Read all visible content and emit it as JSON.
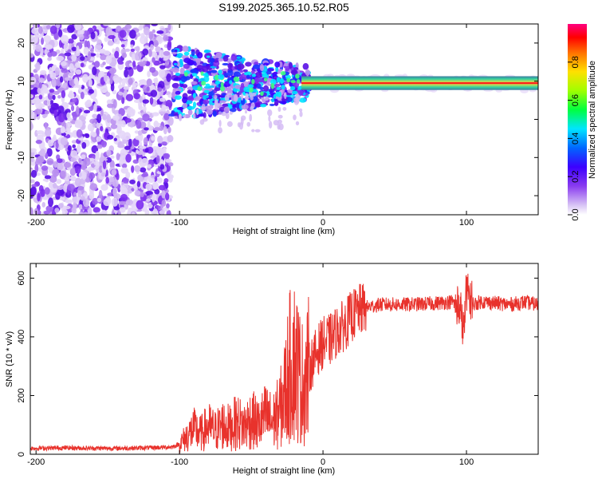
{
  "title": "S199.2025.365.10.52.R05",
  "colors": {
    "snr_line": "#e8322c",
    "spec_low": "#8a3cf0",
    "spec_high": "#ff0000",
    "band": "#3e8e7e"
  },
  "chart_data": [
    {
      "type": "heatmap",
      "name": "spectrogram",
      "xlabel": "Height of straight line (km)",
      "ylabel": "Frequency (Hz)",
      "xlim": [
        -204,
        150
      ],
      "ylim": [
        -25,
        25
      ],
      "x_ticks": [
        -200,
        -100,
        0,
        100
      ],
      "y_ticks": [
        -20,
        -10,
        0,
        10,
        20
      ],
      "band_center_hz": 9.5,
      "grid": false,
      "colorbar": {
        "label": "Normalized spectral amplitude",
        "range": [
          0.0,
          1.0
        ],
        "ticks": [
          0.0,
          0.2,
          0.4,
          0.6,
          0.8
        ],
        "tick_labels": [
          "0.0",
          "0.2",
          "0.4",
          "0.6",
          "0.8"
        ]
      }
    },
    {
      "type": "line",
      "name": "snr",
      "xlabel": "Height of straight line (km)",
      "ylabel": "SNR (10 * v/v)",
      "xlim": [
        -204,
        150
      ],
      "ylim": [
        0,
        650
      ],
      "x_ticks": [
        -200,
        -100,
        0,
        100
      ],
      "y_ticks": [
        0,
        200,
        400,
        600
      ],
      "grid": false,
      "series": [
        {
          "x": [
            -204,
            -180,
            -150,
            -120,
            -105,
            -100,
            -95,
            -90,
            -85,
            -80,
            -75,
            -70,
            -65,
            -60,
            -55,
            -50,
            -45,
            -40,
            -35,
            -30,
            -27,
            -24,
            -21,
            -18,
            -15,
            -12,
            -9,
            -6,
            -3,
            0,
            5,
            10,
            15,
            20,
            25,
            30,
            35,
            40,
            50,
            60,
            70,
            80,
            90,
            95,
            98,
            100,
            105,
            110,
            120,
            130,
            140,
            150
          ],
          "y": [
            20,
            22,
            20,
            22,
            25,
            35,
            60,
            85,
            70,
            95,
            80,
            100,
            90,
            110,
            95,
            120,
            100,
            130,
            110,
            150,
            200,
            280,
            330,
            300,
            240,
            260,
            300,
            330,
            360,
            380,
            390,
            420,
            440,
            470,
            490,
            500,
            505,
            510,
            510,
            510,
            512,
            515,
            520,
            500,
            420,
            560,
            510,
            520,
            515,
            510,
            518,
            510
          ]
        }
      ]
    }
  ]
}
